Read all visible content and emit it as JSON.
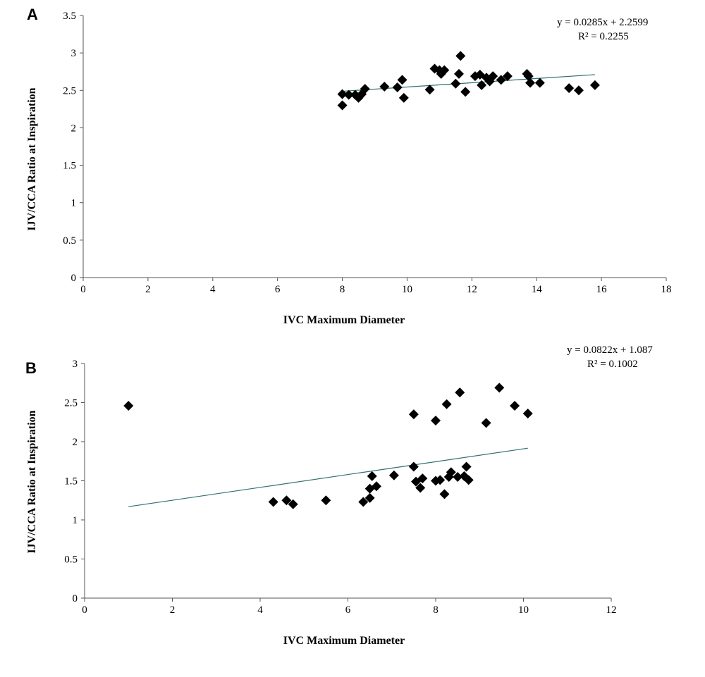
{
  "chart_data": [
    {
      "type": "scatter",
      "panel_label": "A",
      "xlabel": "IVC Maximum Diameter",
      "ylabel": "IJV/CCA Ratio at Inspiration",
      "xlim": [
        0,
        18
      ],
      "ylim": [
        0,
        3.5
      ],
      "xticks": [
        "0",
        "2",
        "4",
        "6",
        "8",
        "10",
        "12",
        "14",
        "16",
        "18"
      ],
      "yticks": [
        "0",
        "0.5",
        "1",
        "1.5",
        "2",
        "2.5",
        "3",
        "3.5"
      ],
      "equation": "y = 0.0285x + 2.2599",
      "r_squared": "R² = 0.2255",
      "trendline": {
        "slope": 0.0285,
        "intercept": 2.2599,
        "x_range": [
          8.0,
          15.8
        ]
      },
      "points": [
        [
          8.0,
          2.45
        ],
        [
          8.0,
          2.3
        ],
        [
          8.2,
          2.44
        ],
        [
          8.4,
          2.44
        ],
        [
          8.5,
          2.4
        ],
        [
          8.6,
          2.45
        ],
        [
          8.7,
          2.52
        ],
        [
          9.3,
          2.55
        ],
        [
          9.7,
          2.54
        ],
        [
          9.85,
          2.64
        ],
        [
          9.9,
          2.4
        ],
        [
          10.7,
          2.51
        ],
        [
          10.85,
          2.79
        ],
        [
          11.0,
          2.77
        ],
        [
          11.05,
          2.72
        ],
        [
          11.15,
          2.77
        ],
        [
          11.5,
          2.59
        ],
        [
          11.6,
          2.72
        ],
        [
          11.65,
          2.96
        ],
        [
          11.8,
          2.48
        ],
        [
          12.1,
          2.69
        ],
        [
          12.25,
          2.71
        ],
        [
          12.3,
          2.57
        ],
        [
          12.45,
          2.67
        ],
        [
          12.55,
          2.62
        ],
        [
          12.65,
          2.69
        ],
        [
          12.9,
          2.64
        ],
        [
          13.1,
          2.69
        ],
        [
          13.7,
          2.72
        ],
        [
          13.75,
          2.69
        ],
        [
          13.8,
          2.6
        ],
        [
          14.1,
          2.6
        ],
        [
          15.0,
          2.53
        ],
        [
          15.3,
          2.5
        ],
        [
          15.8,
          2.57
        ]
      ]
    },
    {
      "type": "scatter",
      "panel_label": "B",
      "xlabel": "IVC Maximum Diameter",
      "ylabel": "IJV/CCA Ratio at Inspiration",
      "xlim": [
        0,
        12
      ],
      "ylim": [
        0,
        3
      ],
      "xticks": [
        "0",
        "2",
        "4",
        "6",
        "8",
        "10",
        "12"
      ],
      "yticks": [
        "0",
        "0.5",
        "1",
        "1.5",
        "2",
        "2.5",
        "3"
      ],
      "equation": "y = 0.0822x + 1.087",
      "r_squared": "R² = 0.1002",
      "trendline": {
        "slope": 0.0822,
        "intercept": 1.087,
        "x_range": [
          1.0,
          10.1
        ]
      },
      "points": [
        [
          1.0,
          2.46
        ],
        [
          4.3,
          1.23
        ],
        [
          4.6,
          1.25
        ],
        [
          4.75,
          1.2
        ],
        [
          5.5,
          1.25
        ],
        [
          6.35,
          1.23
        ],
        [
          6.5,
          1.28
        ],
        [
          6.5,
          1.4
        ],
        [
          6.55,
          1.56
        ],
        [
          6.65,
          1.43
        ],
        [
          7.05,
          1.57
        ],
        [
          7.5,
          1.68
        ],
        [
          7.5,
          2.35
        ],
        [
          7.55,
          1.49
        ],
        [
          7.65,
          1.41
        ],
        [
          7.7,
          1.53
        ],
        [
          8.0,
          2.27
        ],
        [
          8.0,
          1.5
        ],
        [
          8.1,
          1.51
        ],
        [
          8.2,
          1.33
        ],
        [
          8.25,
          2.48
        ],
        [
          8.3,
          1.55
        ],
        [
          8.35,
          1.61
        ],
        [
          8.5,
          1.55
        ],
        [
          8.55,
          2.63
        ],
        [
          8.65,
          1.56
        ],
        [
          8.7,
          1.68
        ],
        [
          8.75,
          1.51
        ],
        [
          9.15,
          2.24
        ],
        [
          9.45,
          2.69
        ],
        [
          9.8,
          2.46
        ],
        [
          10.1,
          2.36
        ]
      ]
    }
  ]
}
